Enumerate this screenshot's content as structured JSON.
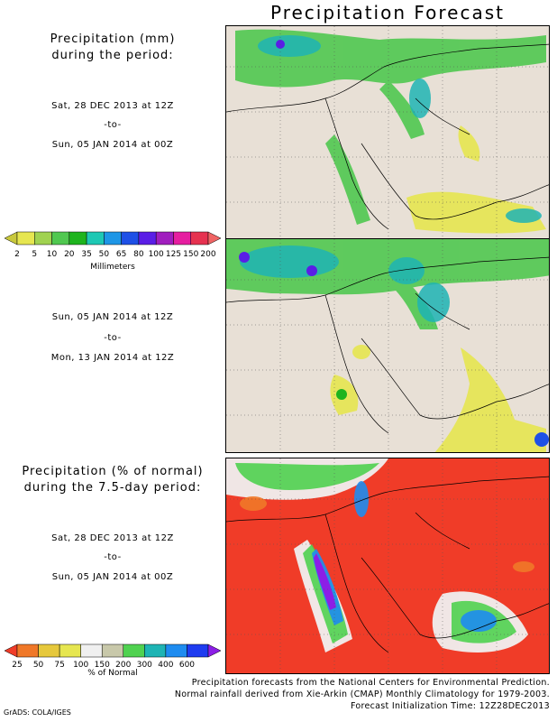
{
  "title": "Precipitation Forecast",
  "panel1": {
    "heading_line1": "Precipitation (mm)",
    "heading_line2": "during the period:",
    "start": "Sat, 28 DEC 2013 at 12Z",
    "to": "-to-",
    "end": "Sun, 05 JAN 2014 at 00Z"
  },
  "panel2": {
    "start": "Sun, 05 JAN 2014 at 12Z",
    "to": "-to-",
    "end": "Mon, 13 JAN 2014 at 12Z"
  },
  "panel3": {
    "heading_line1": "Precipitation (% of normal)",
    "heading_line2": "during the 7.5-day period:",
    "start": "Sat, 28 DEC 2013 at 12Z",
    "to": "-to-",
    "end": "Sun, 05 JAN 2014 at 00Z"
  },
  "colorbar_mm": {
    "unit": "Millimeters",
    "ticks": [
      "2",
      "5",
      "10",
      "20",
      "35",
      "50",
      "65",
      "80",
      "100",
      "125",
      "150",
      "200"
    ],
    "colors": [
      "#c8c83c",
      "#e6e650",
      "#a0d250",
      "#50c850",
      "#1eb41e",
      "#1ec8b4",
      "#1e96e6",
      "#1e50e6",
      "#5a1ee6",
      "#a01ebe",
      "#e61ea0",
      "#e63250",
      "#f06464"
    ]
  },
  "colorbar_pct": {
    "unit": "% of Normal",
    "ticks": [
      "25",
      "50",
      "75",
      "100",
      "150",
      "200",
      "300",
      "400",
      "600"
    ],
    "colors": [
      "#f03c28",
      "#f07828",
      "#e6c83c",
      "#e6e650",
      "#f0f0f0",
      "#c8c8aa",
      "#50d250",
      "#1eb4b4",
      "#1e8cf0",
      "#1e3cf0",
      "#8c1ee6"
    ]
  },
  "credits": {
    "line1": "Precipitation forecasts from the National Centers for Environmental Prediction.",
    "line2": "Normal rainfall derived from Xie-Arkin (CMAP) Monthly Climatology for 1979-2003.",
    "line3": "Forecast Initialization Time: 12Z28DEC2013"
  },
  "grads": "GrADS: COLA/IGES"
}
